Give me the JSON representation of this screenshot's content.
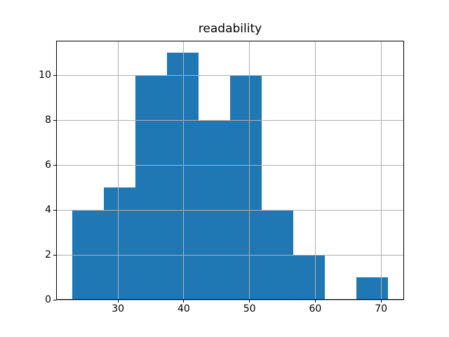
{
  "chart_data": {
    "type": "bar",
    "variant": "histogram",
    "title": "readability",
    "bin_edges": [
      23.0,
      27.8,
      32.6,
      37.4,
      42.2,
      47.0,
      51.8,
      56.6,
      61.4,
      66.2,
      71.0
    ],
    "counts": [
      4,
      5,
      10,
      11,
      8,
      10,
      4,
      2,
      0,
      1
    ],
    "xticks": [
      30,
      40,
      50,
      60,
      70
    ],
    "yticks": [
      0,
      2,
      4,
      6,
      8,
      10
    ],
    "xlim": [
      20.6,
      73.5
    ],
    "ylim": [
      0,
      11.55
    ],
    "xlabel": "",
    "ylabel": "",
    "grid": true,
    "legend": false,
    "bar_color": "#1f77b4",
    "grid_color": "#b0b0b0",
    "spine_color": "#000000",
    "text_color": "#000000",
    "background_color": "#ffffff"
  }
}
